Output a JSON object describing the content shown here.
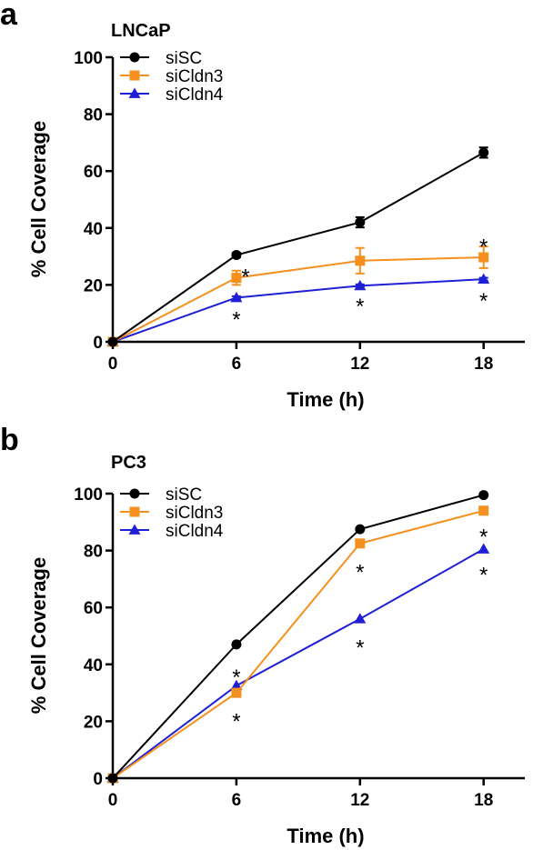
{
  "chart_data": [
    {
      "type": "line",
      "panel_letter": "a",
      "title": "LNCaP",
      "xlabel": "Time (h)",
      "ylabel": "% Cell Coverage",
      "x": [
        0,
        6,
        12,
        18
      ],
      "xticks": [
        "0",
        "6",
        "12",
        "18"
      ],
      "yticks": [
        "0",
        "20",
        "40",
        "60",
        "80",
        "100"
      ],
      "xlim": [
        0,
        20
      ],
      "ylim": [
        0,
        100
      ],
      "grid": false,
      "legend_position": "top-left",
      "series": [
        {
          "name": "siSC",
          "color": "#000000",
          "marker": "circle",
          "values": [
            0,
            30.5,
            42,
            66.5
          ],
          "errors": [
            0,
            0.8,
            1.8,
            1.8
          ]
        },
        {
          "name": "siCldn3",
          "color": "#f5901e",
          "marker": "square",
          "values": [
            0,
            22.5,
            28.5,
            29.7
          ],
          "errors": [
            0,
            2.5,
            4.5,
            3.8
          ]
        },
        {
          "name": "siCldn4",
          "color": "#1f1fd6",
          "marker": "triangle",
          "values": [
            0,
            15.5,
            19.7,
            22
          ],
          "errors": [
            0,
            0.5,
            0.5,
            0.5
          ]
        }
      ],
      "annotations": [
        {
          "text": "*",
          "x": 6,
          "y": 24.5
        },
        {
          "text": "*",
          "x": 6,
          "y": 9.5
        },
        {
          "text": "*",
          "x": 12,
          "y": 14
        },
        {
          "text": "*",
          "x": 18,
          "y": 35
        },
        {
          "text": "*",
          "x": 18,
          "y": 16
        }
      ]
    },
    {
      "type": "line",
      "panel_letter": "b",
      "title": "PC3",
      "xlabel": "Time (h)",
      "ylabel": "% Cell Coverage",
      "x": [
        0,
        6,
        12,
        18
      ],
      "xticks": [
        "0",
        "6",
        "12",
        "18"
      ],
      "yticks": [
        "0",
        "20",
        "40",
        "60",
        "80",
        "100"
      ],
      "xlim": [
        0,
        20
      ],
      "ylim": [
        0,
        100
      ],
      "grid": false,
      "legend_position": "top-left",
      "series": [
        {
          "name": "siSC",
          "color": "#000000",
          "marker": "circle",
          "values": [
            0,
            47,
            87.5,
            99.5
          ],
          "errors": [
            0,
            0,
            0,
            0
          ]
        },
        {
          "name": "siCldn3",
          "color": "#f5901e",
          "marker": "square",
          "values": [
            0,
            30,
            82.5,
            94
          ],
          "errors": [
            0,
            0,
            0,
            0
          ]
        },
        {
          "name": "siCldn4",
          "color": "#1f1fd6",
          "marker": "triangle",
          "values": [
            0,
            32.5,
            56,
            80.5
          ],
          "errors": [
            0,
            0,
            0,
            0
          ]
        }
      ],
      "annotations": [
        {
          "text": "*",
          "x": 6,
          "y": 37
        },
        {
          "text": "*",
          "x": 6,
          "y": 21.5
        },
        {
          "text": "*",
          "x": 12,
          "y": 74
        },
        {
          "text": "*",
          "x": 12,
          "y": 47.5
        },
        {
          "text": "*",
          "x": 18,
          "y": 86.5
        },
        {
          "text": "*",
          "x": 18,
          "y": 73
        }
      ]
    }
  ]
}
